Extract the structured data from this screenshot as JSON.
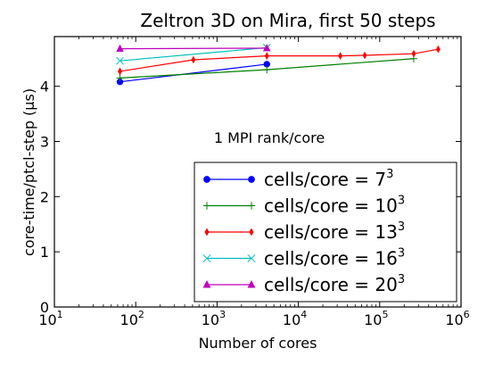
{
  "chart_data": {
    "type": "line",
    "title": "Zeltron 3D on Mira, first 50 steps",
    "xlabel": "Number of cores",
    "ylabel": "core-time/ptcl-step (μs)",
    "x_scale": "log",
    "xlim": [
      10,
      1000000
    ],
    "ylim": [
      0,
      4.9
    ],
    "x_ticks": [
      {
        "base": "10",
        "exp": "1"
      },
      {
        "base": "10",
        "exp": "2"
      },
      {
        "base": "10",
        "exp": "3"
      },
      {
        "base": "10",
        "exp": "4"
      },
      {
        "base": "10",
        "exp": "5"
      },
      {
        "base": "10",
        "exp": "6"
      }
    ],
    "y_ticks": [
      0,
      1,
      2,
      3,
      4
    ],
    "grid": false,
    "annotation": "1 MPI rank/core",
    "legend_placement": "lower-right",
    "series": [
      {
        "name": "cells/core = 7",
        "name_exp": "3",
        "color": "#0000ff",
        "marker": "circle",
        "x": [
          64,
          4096
        ],
        "y": [
          4.08,
          4.4
        ]
      },
      {
        "name": "cells/core = 10",
        "name_exp": "3",
        "color": "#008000",
        "marker": "plus",
        "x": [
          64,
          4096,
          262144
        ],
        "y": [
          4.15,
          4.3,
          4.5
        ]
      },
      {
        "name": "cells/core = 13",
        "name_exp": "3",
        "color": "#ff0000",
        "marker": "thin-diamond",
        "x": [
          64,
          512,
          4096,
          32768,
          65536,
          262144,
          524288
        ],
        "y": [
          4.27,
          4.48,
          4.55,
          4.55,
          4.56,
          4.59,
          4.67
        ]
      },
      {
        "name": "cells/core = 16",
        "name_exp": "3",
        "color": "#00bfbf",
        "marker": "x",
        "x": [
          64,
          4096
        ],
        "y": [
          4.46,
          4.7
        ]
      },
      {
        "name": "cells/core = 20",
        "name_exp": "3",
        "color": "#bf00bf",
        "marker": "triangle",
        "x": [
          64,
          4096
        ],
        "y": [
          4.68,
          4.69
        ]
      }
    ]
  }
}
